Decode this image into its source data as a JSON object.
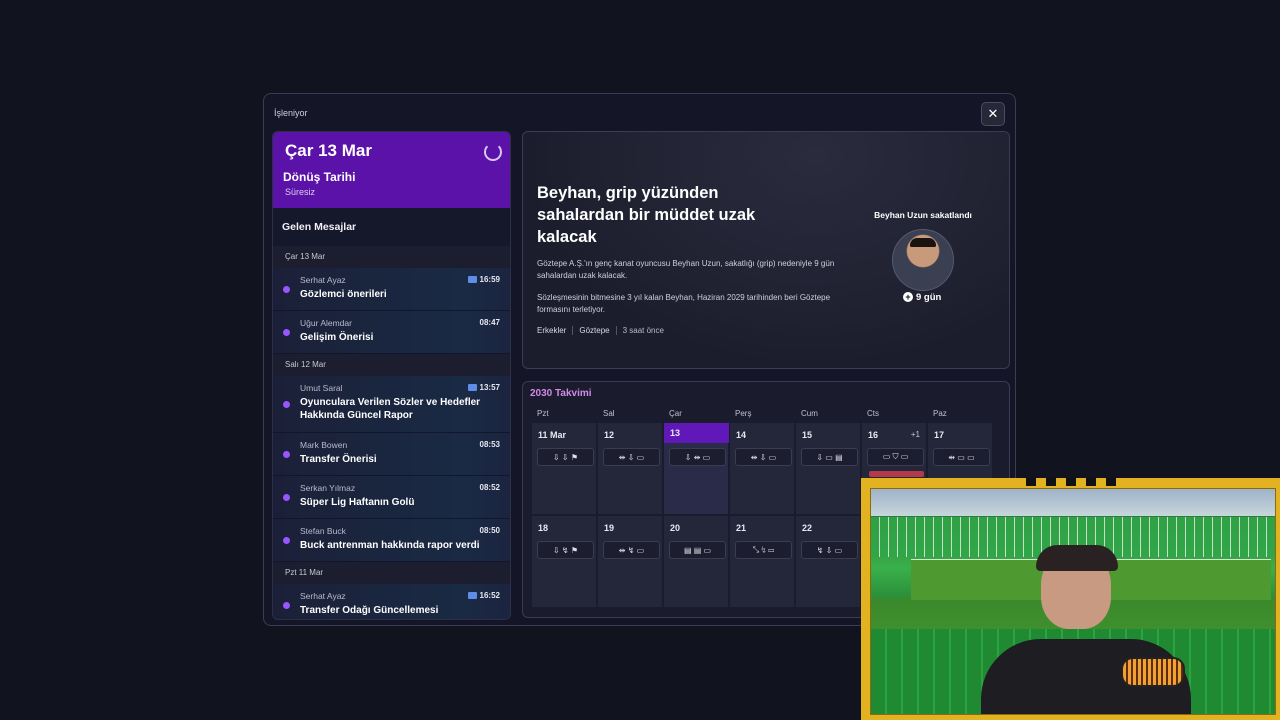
{
  "modal": {
    "title": "İşleniyor",
    "close_label": "✕"
  },
  "header": {
    "date": "Çar 13 Mar",
    "title": "Dönüş Tarihi",
    "subtitle": "Süresiz"
  },
  "inbox": {
    "title": "Gelen Mesajlar",
    "groups": [
      {
        "label": "Çar 13 Mar",
        "messages": [
          {
            "from": "Serhat Ayaz",
            "subject": "Gözlemci önerileri",
            "time": "16:59",
            "chat": true
          },
          {
            "from": "Uğur Alemdar",
            "subject": "Gelişim Önerisi",
            "time": "08:47",
            "chat": false
          }
        ]
      },
      {
        "label": "Salı 12 Mar",
        "messages": [
          {
            "from": "Umut Saral",
            "subject": "Oyunculara Verilen Sözler ve Hedefler Hakkında Güncel Rapor",
            "time": "13:57",
            "chat": true
          },
          {
            "from": "Mark Bowen",
            "subject": "Transfer Önerisi",
            "time": "08:53",
            "chat": false
          },
          {
            "from": "Serkan Yılmaz",
            "subject": "Süper Lig Haftanın Golü",
            "time": "08:52",
            "chat": false
          },
          {
            "from": "Stefan Buck",
            "subject": "Buck antrenman hakkında rapor verdi",
            "time": "08:50",
            "chat": false
          }
        ]
      },
      {
        "label": "Pzt 11 Mar",
        "messages": [
          {
            "from": "Serhat Ayaz",
            "subject": "Transfer Odağı Güncellemesi",
            "time": "16:52",
            "chat": true
          }
        ]
      }
    ]
  },
  "news": {
    "headline": "Beyhan, grip yüzünden sahalardan bir müddet uzak kalacak",
    "para1": "Göztepe A.Ş.'ın genç kanat oyuncusu Beyhan Uzun, sakatlığı (grip) nedeniyle 9 gün sahalardan uzak kalacak.",
    "para2": "Sözleşmesinin bitmesine 3 yıl kalan Beyhan, Haziran 2029 tarihinden beri Göztepe formasını terletiyor.",
    "tags": [
      "Erkekler",
      "Göztepe",
      "3 saat önce"
    ],
    "injury_label": "Beyhan Uzun sakatlandı",
    "injury_days": "9 gün"
  },
  "calendar": {
    "title": "2030 Takvimi",
    "weekdays": [
      "Pzt",
      "Sal",
      "Çar",
      "Perş",
      "Cum",
      "Cts",
      "Paz"
    ],
    "week1": [
      {
        "day": "11 Mar",
        "icons": "⇩ ⇩ ⚑"
      },
      {
        "day": "12",
        "icons": "⇹ ⇩ ▭"
      },
      {
        "day": "13",
        "icons": "⇩ ⇹ ▭"
      },
      {
        "day": "14",
        "icons": "⇹ ⇩ ▭"
      },
      {
        "day": "15",
        "icons": "⇩ ▭ ▤"
      },
      {
        "day": "16",
        "extra": "+1",
        "icons": "▭ ⛉ ▭"
      },
      {
        "day": "17",
        "icons": "⇹ ▭ ▭"
      }
    ],
    "week2": [
      {
        "day": "18",
        "icons": "⇩ ↯ ⚑"
      },
      {
        "day": "19",
        "icons": "⇹ ↯ ▭"
      },
      {
        "day": "20",
        "icons": "▤ ▤ ▭"
      },
      {
        "day": "21",
        "icons": "⤡ ↯ ▭"
      },
      {
        "day": "22",
        "icons": "↯ ⇩ ▭"
      }
    ]
  }
}
